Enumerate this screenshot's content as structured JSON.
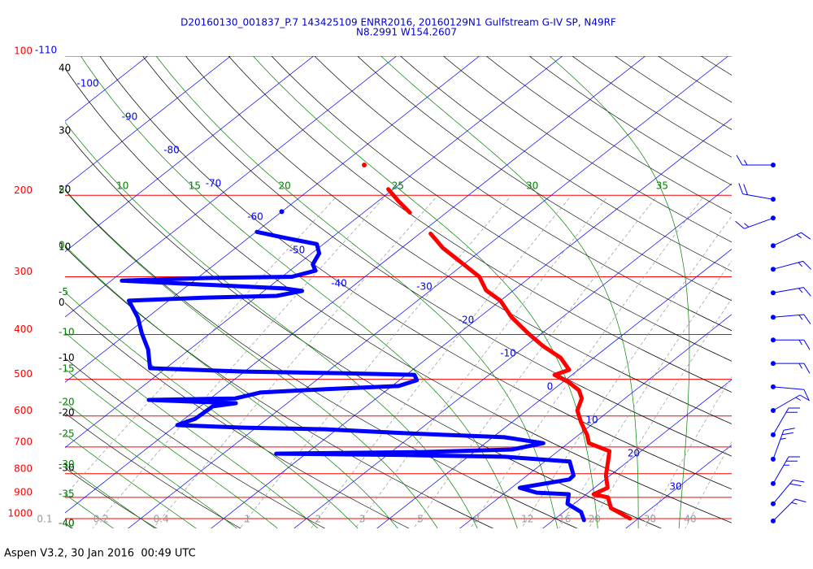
{
  "chart_data": {
    "type": "skewt",
    "title": "D20160130_001837_P.7 143425109 ENRR2016, 20160129N1 Gulfstream G-IV SP, N49RF",
    "subtitle": "N8.2991 W154.2607",
    "footer": "Aspen V3.2, 30 Jan 2016  00:49 UTC",
    "log_y": true,
    "ylim": [
      100,
      1050
    ],
    "yticks": [
      100,
      200,
      300,
      400,
      500,
      600,
      700,
      800,
      900,
      1000
    ],
    "pressure_color": "#ff0000",
    "isotherms": [
      -110,
      -100,
      -90,
      -80,
      -70,
      -60,
      -50,
      -40,
      -30,
      -20,
      -10,
      0,
      10,
      20,
      30
    ],
    "isotherm_color": "#0000ff",
    "dry_adiabats": [
      -40,
      -30,
      -20,
      -10,
      0,
      10,
      20,
      30,
      40,
      50,
      60,
      70,
      80,
      90,
      100,
      110,
      120,
      130,
      140,
      150,
      160,
      170,
      180,
      190
    ],
    "dry_adiabat_color": "#000000",
    "moist_adiabats": [
      -40,
      -35,
      -30,
      -25,
      -20,
      -15,
      -10,
      -5,
      0,
      5,
      10,
      15,
      20,
      25,
      30,
      35
    ],
    "moist_adiabat_color": "#008000",
    "mixing_ratios": [
      0.1,
      0.2,
      0.4,
      1,
      2,
      3,
      5,
      8,
      12,
      16,
      20,
      30,
      40
    ],
    "mixing_ratio_color": "#999999",
    "series": [
      {
        "color": "#ff0000",
        "pressure": [
          172,
          null,
          194,
          206,
          218,
          null,
          242,
          260,
          282,
          300,
          321,
          338,
          367,
          398,
          423,
          449,
          477,
          489,
          507,
          528,
          550,
          584,
          620,
          659,
          687,
          715,
          744,
          807,
          858,
          886,
          900,
          949,
          1000
        ],
        "values": [
          -57.2,
          null,
          -50.6,
          -47.5,
          -44.4,
          null,
          -38.7,
          -35.0,
          -30.0,
          -26.2,
          -23.3,
          -20.0,
          -16.1,
          -11.6,
          -8.0,
          -4.0,
          -1.1,
          -2.1,
          0.7,
          3.2,
          4.8,
          6.1,
          8.4,
          11.0,
          12.5,
          16.2,
          17.3,
          19.5,
          21.6,
          20.9,
          23.1,
          25.1,
          29.0
        ]
      },
      {
        "color": "#0000ff",
        "pressure": [
          217,
          null,
          240,
          247,
          255,
          267,
          282,
          291,
          300,
          302,
          306,
          312,
          318,
          322,
          330,
          333,
          338,
          367,
          398,
          431,
          473,
          481,
          485,
          489,
          502,
          517,
          525,
          534,
          550,
          554,
          563,
          572,
          608,
          628,
          636,
          641,
          654,
          667,
          687,
          709,
          718,
          724,
          729,
          735,
          753,
          807,
          823,
          858,
          879,
          886,
          929,
          968,
          1008
        ],
        "values": [
          -60.0,
          null,
          -59.9,
          -55.7,
          -50.8,
          -49.1,
          -48.2,
          -46.9,
          -48.8,
          -59.3,
          -68.7,
          -58.3,
          -47.9,
          -45.4,
          -47.7,
          -56.3,
          -64.8,
          -61.2,
          -58.2,
          -55.0,
          -51.9,
          -40.1,
          -28.1,
          -19.0,
          -17.9,
          -19.2,
          -27.5,
          -34.9,
          -37.0,
          -47.2,
          -36.2,
          -38.5,
          -38.7,
          -39.9,
          -31.5,
          -21.4,
          -11.0,
          1.4,
          7.0,
          4.2,
          -6.2,
          -23.6,
          -7.7,
          4.4,
          13.0,
          15.6,
          15.7,
          11.0,
          13.8,
          17.9,
          19.2,
          22.1,
          23.7
        ]
      }
    ],
    "winds": {
      "color": "#0000ff",
      "pressure": [
        172,
        204,
        224,
        257,
        289,
        325,
        367,
        411,
        462,
        519,
        584,
        659,
        744,
        840,
        929,
        1012
      ],
      "direction": [
        270,
        280,
        250,
        65,
        75,
        80,
        85,
        90,
        90,
        95,
        60,
        30,
        20,
        30,
        40,
        45
      ],
      "speed": [
        15,
        20,
        15,
        15,
        15,
        15,
        15,
        15,
        15,
        10,
        15,
        20,
        25,
        25,
        20,
        15
      ]
    }
  }
}
